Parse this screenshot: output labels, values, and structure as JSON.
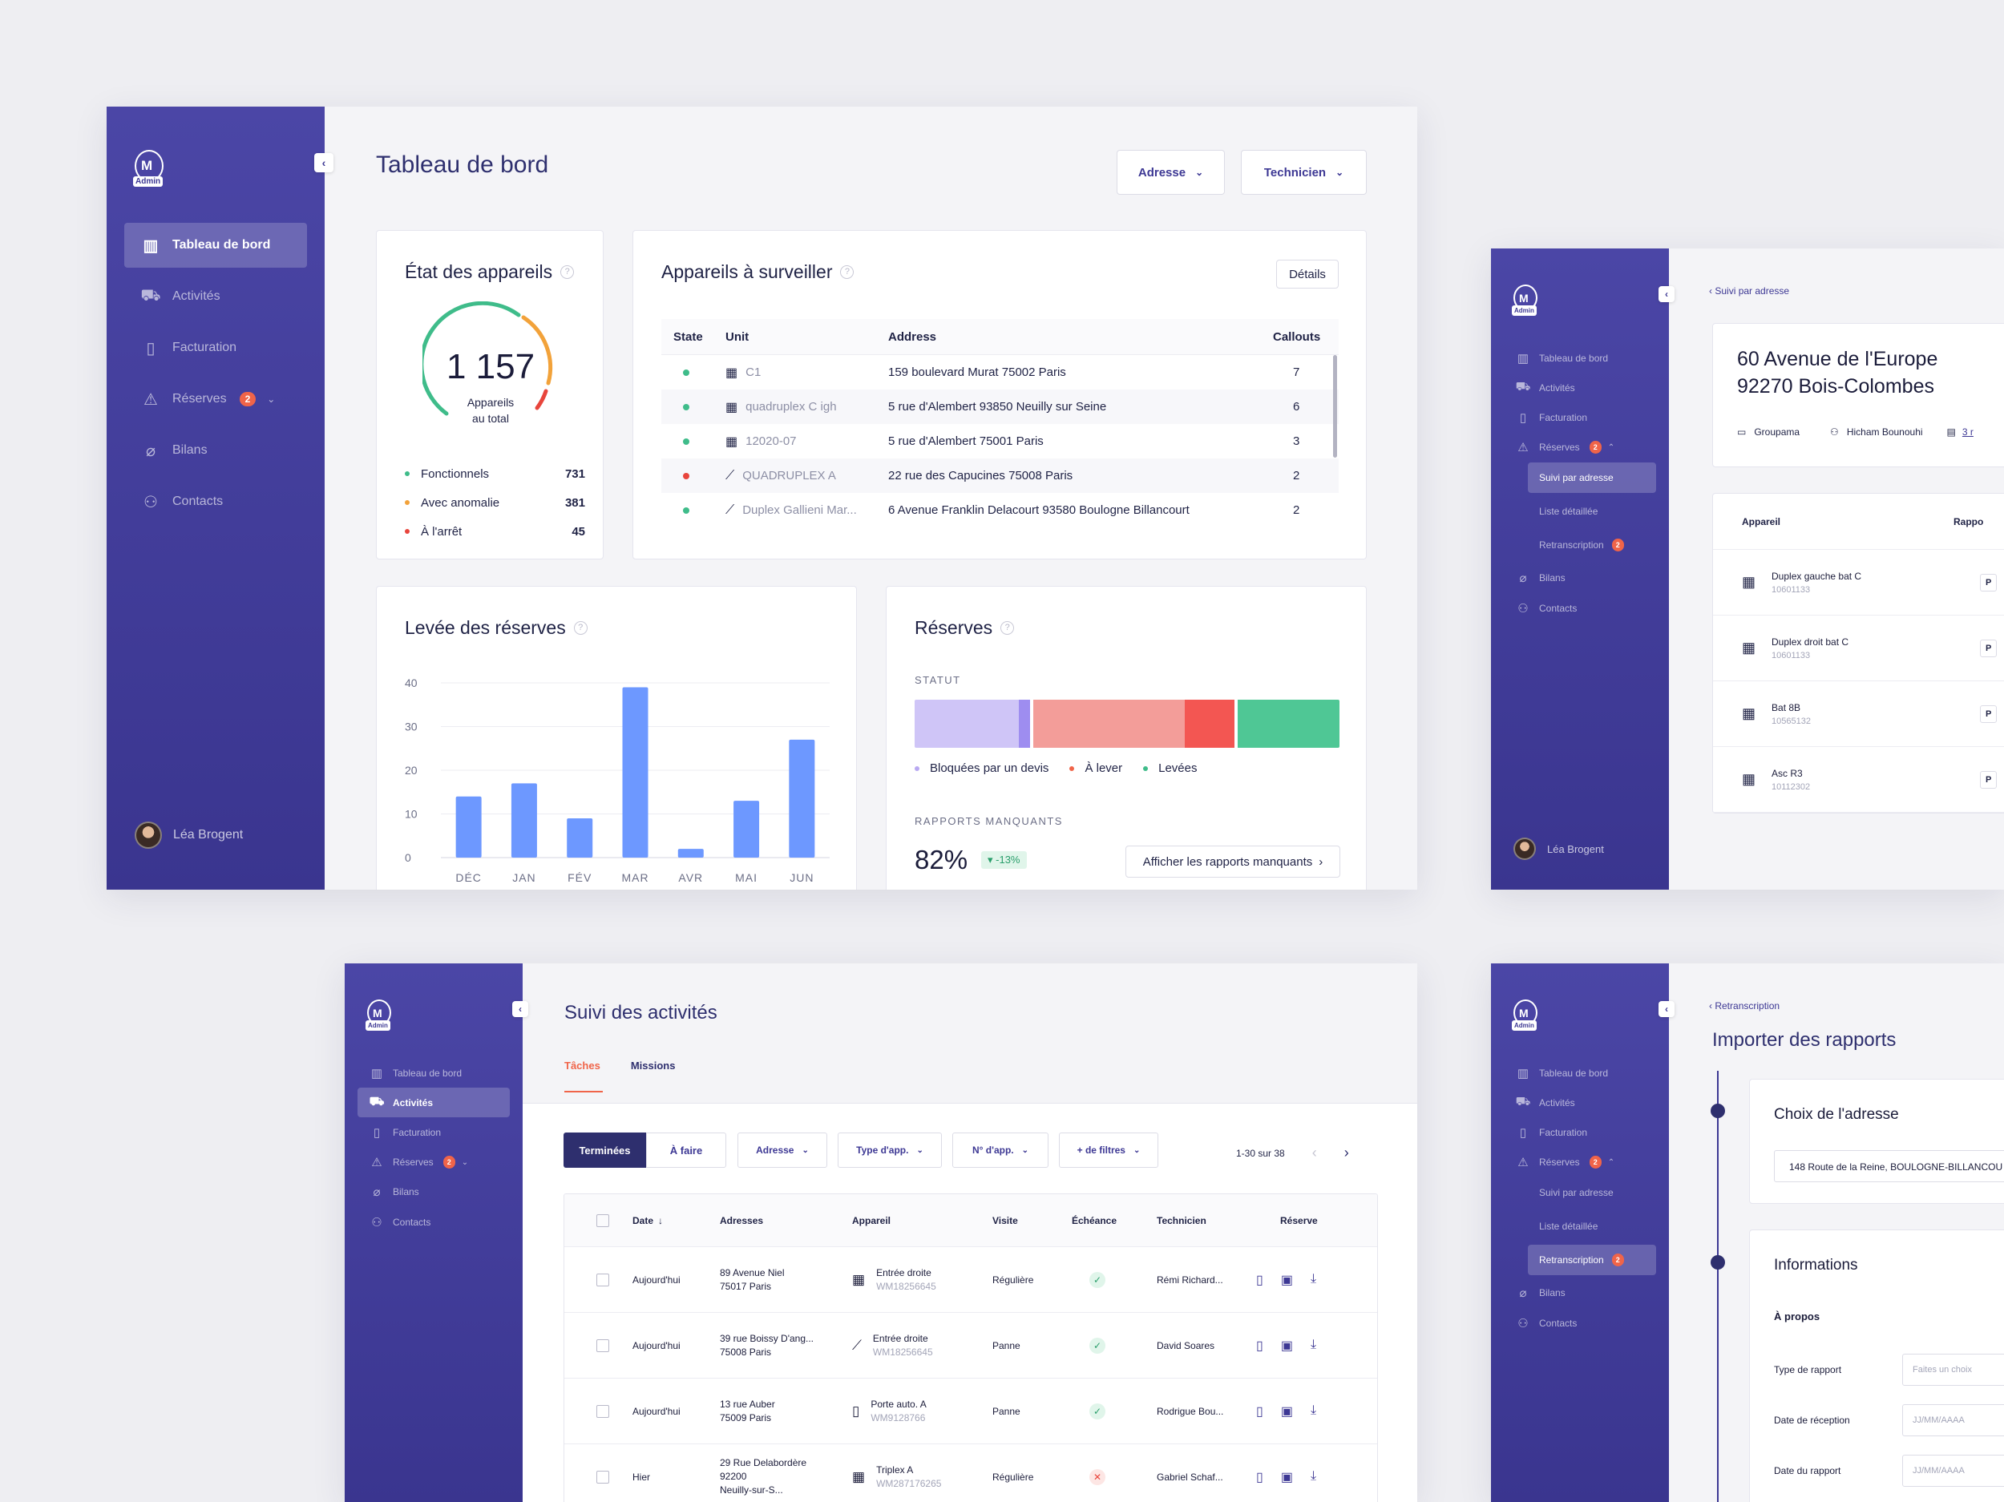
{
  "brand": {
    "logo_label": "Admin",
    "logo_letter": "M"
  },
  "colors": {
    "accent": "#3d3894",
    "sidebar": "#4b46a6",
    "green": "#3fbc8a",
    "orange": "#f2a23a",
    "red": "#e8453c",
    "bar": "#6d98ff"
  },
  "dashboard": {
    "title": "Tableau de bord",
    "filters": {
      "adresse": "Adresse",
      "technicien": "Technicien"
    },
    "nav": [
      {
        "label": "Tableau de bord",
        "icon": "bar-chart-icon"
      },
      {
        "label": "Activités",
        "icon": "truck-icon"
      },
      {
        "label": "Facturation",
        "icon": "invoice-icon"
      },
      {
        "label": "Réserves",
        "icon": "warning-icon",
        "badge": "2"
      },
      {
        "label": "Bilans",
        "icon": "paperclip-icon"
      },
      {
        "label": "Contacts",
        "icon": "user-icon"
      }
    ],
    "user": "Léa Brogent",
    "etat": {
      "title": "État des appareils",
      "total": "1 157",
      "total_label_1": "Appareils",
      "total_label_2": "au total",
      "rows": [
        {
          "label": "Fonctionnels",
          "value": "731",
          "color": "#3fbc8a"
        },
        {
          "label": "Avec anomalie",
          "value": "381",
          "color": "#f2a23a"
        },
        {
          "label": "À l'arrêt",
          "value": "45",
          "color": "#e8453c"
        }
      ]
    },
    "surveiller": {
      "title": "Appareils à surveiller",
      "details": "Détails",
      "headers": {
        "state": "State",
        "unit": "Unit",
        "address": "Address",
        "callouts": "Callouts"
      },
      "rows": [
        {
          "state": "#3fbc8a",
          "icon": "building-icon",
          "unit": "C1",
          "address": "159 boulevard Murat 75002 Paris",
          "callouts": "7"
        },
        {
          "state": "#3fbc8a",
          "icon": "building-icon",
          "unit": "quadruplex C igh",
          "address": "5 rue d'Alembert 93850 Neuilly sur Seine",
          "callouts": "6"
        },
        {
          "state": "#3fbc8a",
          "icon": "building-icon",
          "unit": "12020-07",
          "address": "5 rue d'Alembert 75001 Paris",
          "callouts": "3"
        },
        {
          "state": "#e8453c",
          "icon": "escalator-icon",
          "unit": "QUADRUPLEX A",
          "address": "22 rue des Capucines 75008 Paris",
          "callouts": "2"
        },
        {
          "state": "#3fbc8a",
          "icon": "escalator-icon",
          "unit": "Duplex Gallieni Mar...",
          "address": "6 Avenue Franklin Delacourt 93580 Boulogne Billancourt",
          "callouts": "2"
        }
      ]
    },
    "levee": {
      "title": "Levée des réserves"
    },
    "reserves": {
      "title": "Réserves",
      "statut_label": "STATUT",
      "legend": [
        {
          "label": "Bloquées par un devis",
          "color": "#b9a9f2"
        },
        {
          "label": "À lever",
          "color": "#f06449"
        },
        {
          "label": "Levées",
          "color": "#3fbc8a"
        }
      ],
      "rapports_label": "RAPPORTS MANQUANTS",
      "rapports_value": "82%",
      "rapports_delta": "-13%",
      "rapports_button": "Afficher les rapports manquants"
    }
  },
  "chart_data": {
    "type": "bar",
    "title": "Levée des réserves",
    "categories": [
      "DÉC",
      "JAN",
      "FÉV",
      "MAR",
      "AVR",
      "MAI",
      "JUN"
    ],
    "values": [
      14,
      17,
      9,
      39,
      2,
      13,
      27
    ],
    "yticks": [
      "40",
      "30",
      "20",
      "10",
      "0"
    ],
    "ylim": [
      0,
      40
    ],
    "grid": true
  },
  "suivi_adresse": {
    "breadcrumb": "Suivi par adresse",
    "address_line1": "60 Avenue de l'Europe",
    "address_line2": "92270 Bois-Colombes",
    "meta_company": "Groupama",
    "meta_person": "Hicham Bounouhi",
    "meta_reports": "3 r",
    "nav": [
      {
        "label": "Tableau de bord",
        "icon": "bar-chart-icon"
      },
      {
        "label": "Activités",
        "icon": "truck-icon"
      },
      {
        "label": "Facturation",
        "icon": "invoice-icon"
      },
      {
        "label": "Réserves",
        "icon": "warning-icon",
        "badge": "2"
      }
    ],
    "subnav": [
      {
        "label": "Suivi par adresse"
      },
      {
        "label": "Liste détaillée"
      },
      {
        "label": "Retranscription",
        "badge": "2"
      }
    ],
    "nav2": [
      {
        "label": "Bilans",
        "icon": "paperclip-icon"
      },
      {
        "label": "Contacts",
        "icon": "user-icon"
      }
    ],
    "user": "Léa Brogent",
    "table_header_1": "Appareil",
    "table_header_2": "Rappo",
    "items": [
      {
        "name": "Duplex gauche bat C",
        "code": "10601133",
        "tag": "P"
      },
      {
        "name": "Duplex droit bat C",
        "code": "10601133",
        "tag": "P"
      },
      {
        "name": "Bat 8B",
        "code": "10565132",
        "tag": "P"
      },
      {
        "name": "Asc R3",
        "code": "10112302",
        "tag": "P"
      }
    ]
  },
  "activites": {
    "title": "Suivi des activités",
    "tabs": [
      "Tâches",
      "Missions"
    ],
    "nav": [
      {
        "label": "Tableau de bord",
        "icon": "bar-chart-icon"
      },
      {
        "label": "Activités",
        "icon": "truck-icon"
      },
      {
        "label": "Facturation",
        "icon": "invoice-icon"
      },
      {
        "label": "Réserves",
        "icon": "warning-icon",
        "badge": "2"
      },
      {
        "label": "Bilans",
        "icon": "paperclip-icon"
      },
      {
        "label": "Contacts",
        "icon": "user-icon"
      }
    ],
    "segment": [
      "Terminées",
      "À faire"
    ],
    "filters": [
      "Adresse",
      "Type d'app.",
      "N° d'app.",
      "+ de filtres"
    ],
    "pagination": "1-30 sur 38",
    "headers": [
      "Date",
      "Adresses",
      "Appareil",
      "Visite",
      "Échéance",
      "Technicien",
      "Réserve"
    ],
    "rows": [
      {
        "date": "Aujourd'hui",
        "addr": [
          "89 Avenue Niel",
          "75017 Paris"
        ],
        "icon": "building-icon",
        "app": "Entrée droite",
        "code": "WM18256645",
        "visite": "Régulière",
        "ok": true,
        "tech": "Rémi Richard..."
      },
      {
        "date": "Aujourd'hui",
        "addr": [
          "39 rue Boissy D'ang...",
          "75008 Paris"
        ],
        "icon": "escalator-icon",
        "app": "Entrée droite",
        "code": "WM18256645",
        "visite": "Panne",
        "ok": true,
        "tech": "David Soares"
      },
      {
        "date": "Aujourd'hui",
        "addr": [
          "13 rue Auber",
          "75009 Paris"
        ],
        "icon": "door-icon",
        "app": "Porte auto. A",
        "code": "WM9128766",
        "visite": "Panne",
        "ok": true,
        "tech": "Rodrigue Bou..."
      },
      {
        "date": "Hier",
        "addr": [
          "29 Rue Delabordère",
          "92200",
          "Neuilly-sur-S..."
        ],
        "icon": "building-icon",
        "app": "Triplex A",
        "code": "WM287176265",
        "visite": "Régulière",
        "ok": false,
        "tech": "Gabriel Schaf..."
      }
    ]
  },
  "import": {
    "breadcrumb": "Retranscription",
    "title": "Importer des rapports",
    "section1": "Choix de l'adresse",
    "address_value": "148 Route de la Reine, BOULOGNE-BILLANCOU",
    "section2": "Informations",
    "apropos": "À propos",
    "fields": [
      {
        "label": "Type de rapport",
        "placeholder": "Faites un choix"
      },
      {
        "label": "Date de réception",
        "placeholder": "JJ/MM/AAAA"
      },
      {
        "label": "Date du rapport",
        "placeholder": "JJ/MM/AAAA"
      }
    ]
  }
}
